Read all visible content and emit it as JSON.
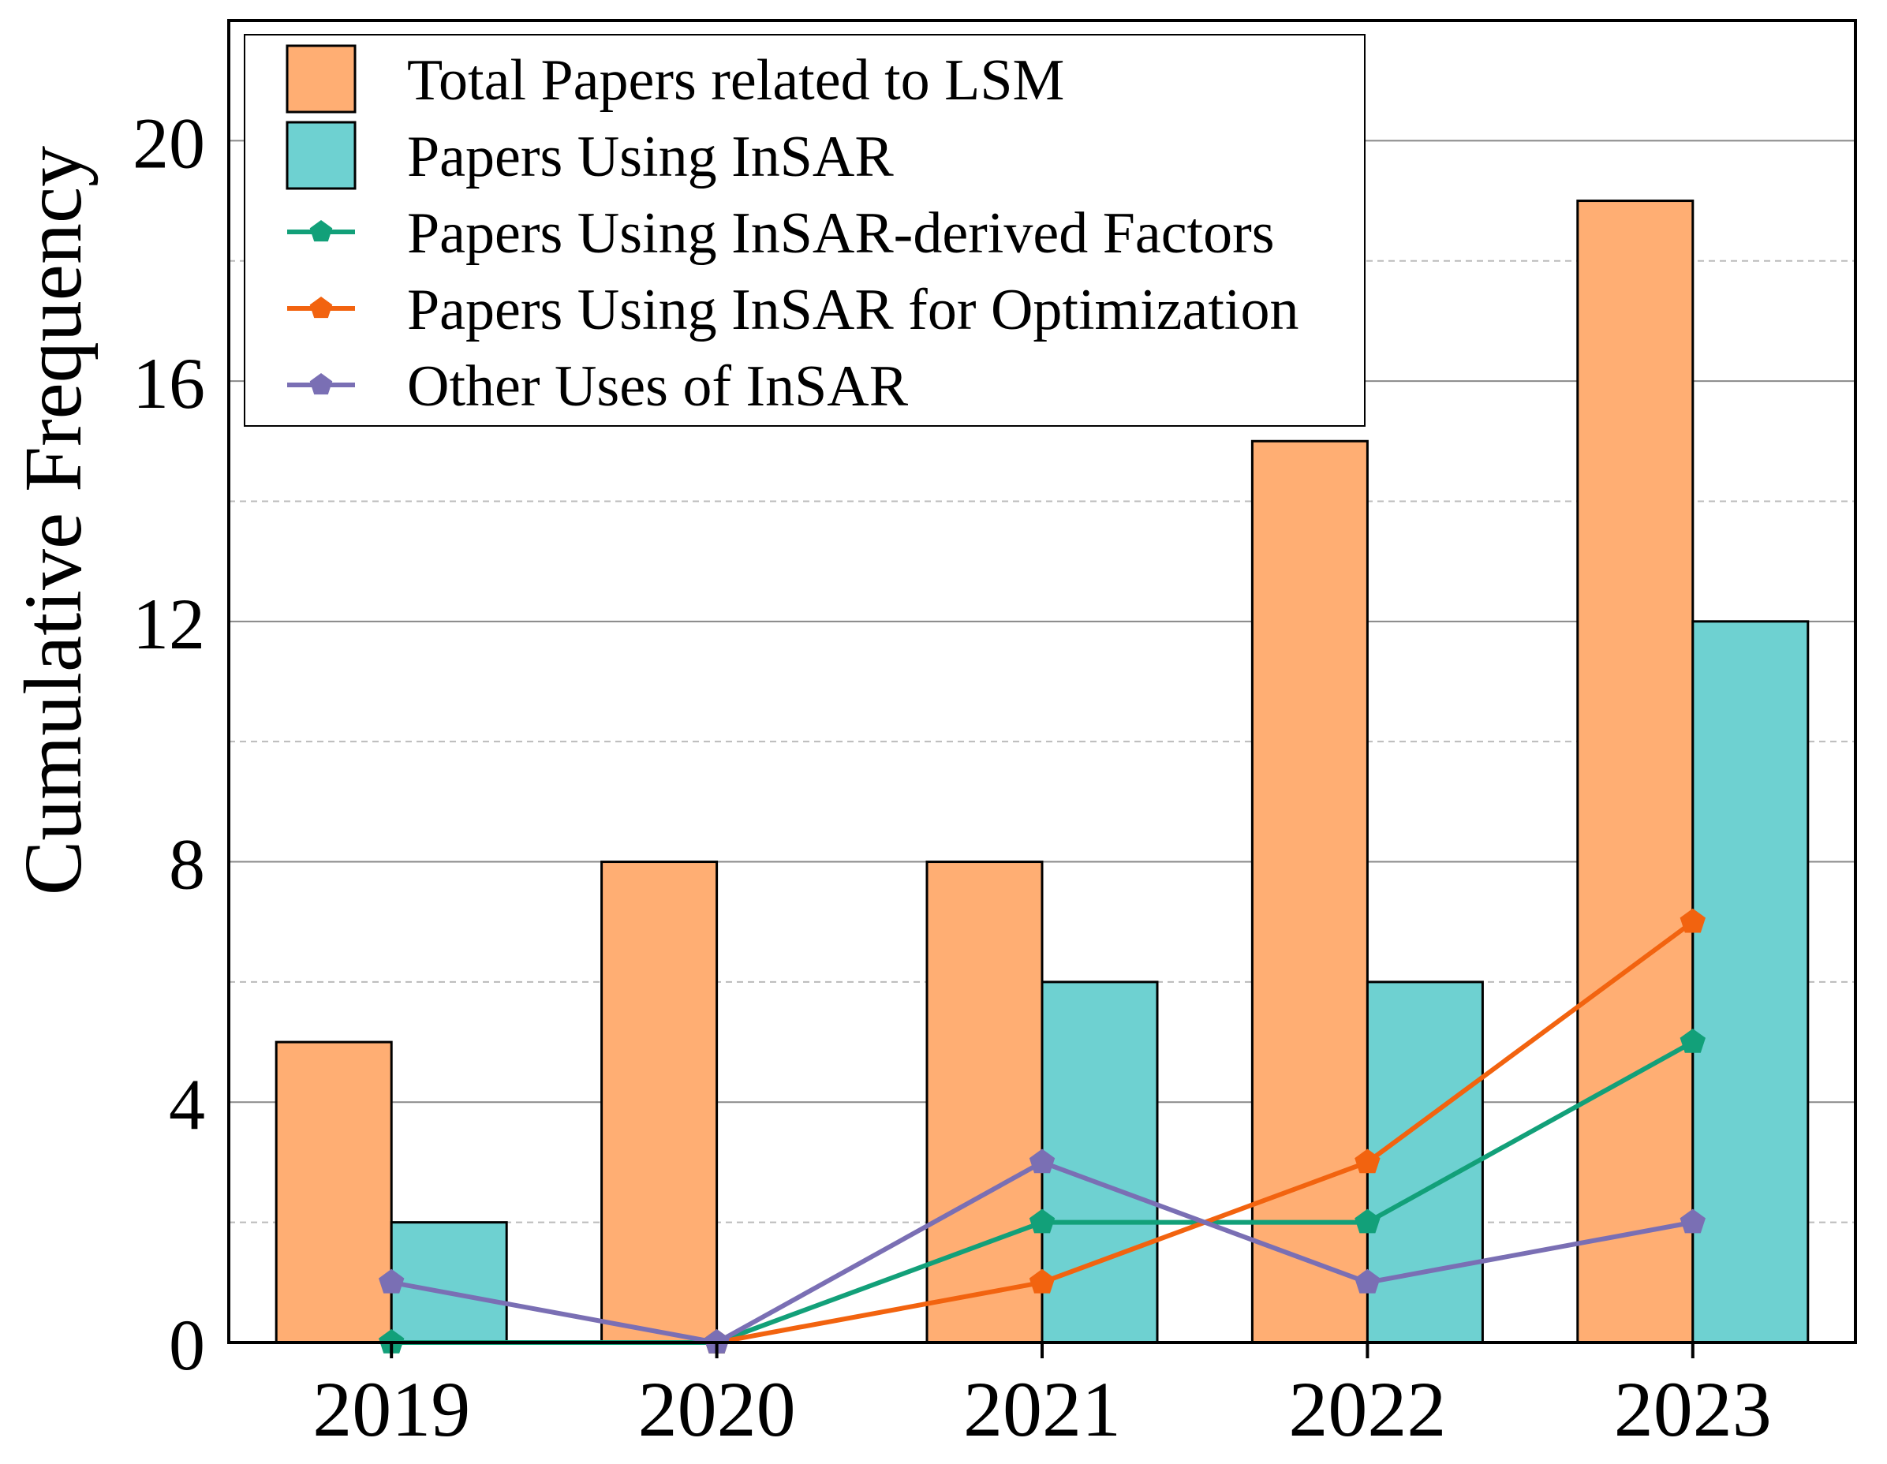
{
  "chart_data": {
    "type": "bar",
    "title": "",
    "xlabel": "",
    "ylabel": "Cumulative Frequency",
    "ylim": [
      0,
      22
    ],
    "yticks": [
      0,
      4,
      8,
      12,
      16,
      20
    ],
    "minor_grid": [
      2,
      6,
      10,
      14,
      18
    ],
    "grid": true,
    "legend_position": "top-left",
    "categories": [
      "2019",
      "2020",
      "2021",
      "2022",
      "2023"
    ],
    "series": [
      {
        "name": "Total Papers related to LSM",
        "kind": "bar",
        "color": "#FFAE73",
        "values": [
          5,
          8,
          8,
          15,
          19
        ]
      },
      {
        "name": "Papers Using InSAR",
        "kind": "bar",
        "color": "#6ED1D1",
        "values": [
          2,
          0,
          6,
          6,
          12
        ]
      },
      {
        "name": "Papers Using InSAR-derived Factors",
        "kind": "line",
        "color": "#12A079",
        "marker": "pentagon",
        "values": [
          0,
          0,
          2,
          2,
          5
        ]
      },
      {
        "name": "Papers Using InSAR for Optimization",
        "kind": "line",
        "color": "#F2630F",
        "marker": "pentagon",
        "values": [
          null,
          0,
          1,
          3,
          7
        ]
      },
      {
        "name": "Other Uses of InSAR",
        "kind": "line",
        "color": "#7A6FB4",
        "marker": "pentagon",
        "values": [
          1,
          0,
          3,
          1,
          2
        ]
      }
    ]
  }
}
